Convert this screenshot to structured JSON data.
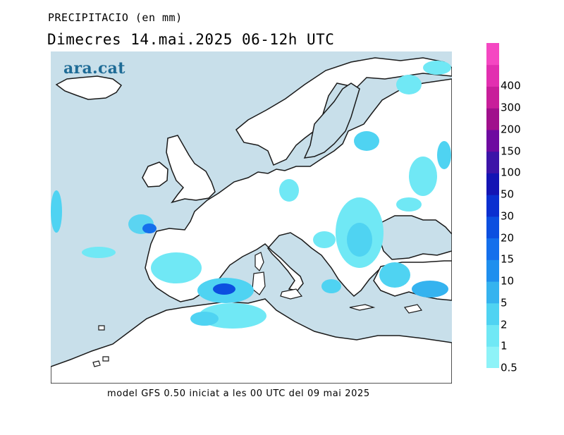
{
  "header": {
    "title": "PRECIPITACIO (en mm)",
    "subtitle": "Dimecres  14.mai.2025 06-12h UTC"
  },
  "brand": {
    "name": "ara.cat",
    "color": "#1e6b96"
  },
  "footer": {
    "text": "model GFS 0.50 iniciat a les 00 UTC del 09 mai 2025"
  },
  "map": {
    "region": "Europe",
    "sea_color": "#c8dfea",
    "land_color": "#ffffff",
    "coastline_color": "#1a1a1a"
  },
  "legend": {
    "levels": [
      {
        "label": "0.5",
        "color": "#8ef3f8"
      },
      {
        "label": "1",
        "color": "#70e8f5"
      },
      {
        "label": "2",
        "color": "#4fd3f2"
      },
      {
        "label": "5",
        "color": "#35b3ef"
      },
      {
        "label": "10",
        "color": "#1f8fee"
      },
      {
        "label": "15",
        "color": "#146fec"
      },
      {
        "label": "20",
        "color": "#0c4fe0"
      },
      {
        "label": "30",
        "color": "#0b2fd0"
      },
      {
        "label": "50",
        "color": "#1414b4"
      },
      {
        "label": "100",
        "color": "#3c14a8"
      },
      {
        "label": "150",
        "color": "#6e0aa0"
      },
      {
        "label": "200",
        "color": "#a0108c"
      },
      {
        "label": "300",
        "color": "#c81e9a"
      },
      {
        "label": "400",
        "color": "#e22fb0"
      }
    ],
    "top_color": "#f547c2"
  }
}
